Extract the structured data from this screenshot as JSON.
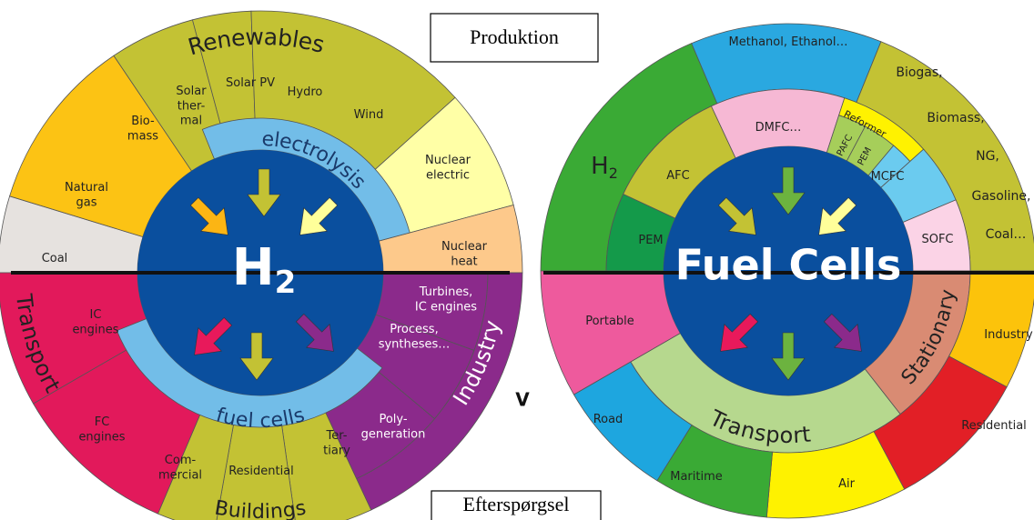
{
  "boxes": {
    "top": "Produktion",
    "bottom": "Efterspørgsel"
  },
  "stray": "V",
  "left": {
    "center": {
      "main": "H",
      "sub": "2"
    },
    "rings": {
      "electrolysis": "electrolysis",
      "fuel_cells": "fuel cells"
    },
    "groups": {
      "renewables": "Renewables",
      "industry": "Industry",
      "buildings": "Buildings",
      "transport": "Transport"
    },
    "segments": [
      [
        "Coal"
      ],
      [
        "Natural",
        "gas"
      ],
      [
        "Bio-",
        "mass"
      ],
      [
        "Solar",
        "ther-",
        "mal"
      ],
      [
        "Solar PV"
      ],
      [
        "Hydro"
      ],
      [
        "Wind"
      ],
      [
        "Nuclear",
        "electric"
      ],
      [
        "Nuclear",
        "heat"
      ],
      [
        "Turbines,",
        "IC engines"
      ],
      [
        "Process,",
        "syntheses…"
      ],
      [
        "Poly-",
        "generation"
      ],
      [
        "Ter-",
        "tiary"
      ],
      [
        "Residential"
      ],
      [
        "Com-",
        "mercial"
      ],
      [
        "FC",
        "engines"
      ],
      [
        "IC",
        "engines"
      ]
    ]
  },
  "right": {
    "center": "Fuel Cells",
    "h2": {
      "main": "H",
      "sub": "2"
    },
    "groups": {
      "transport": "Transport",
      "stationary": "Stationary"
    },
    "segments": [
      [
        "Methanol, Ethanol…"
      ],
      [
        "Biogas,"
      ],
      [
        "Biomass,"
      ],
      [
        "NG,"
      ],
      [
        "Gasoline,"
      ],
      [
        "Coal…"
      ],
      [
        "AFC"
      ],
      [
        "PEM"
      ],
      [
        "DMFC…"
      ],
      [
        "Reformer"
      ],
      [
        "PAFC"
      ],
      [
        "PEM"
      ],
      [
        "MCFC"
      ],
      [
        "SOFC"
      ],
      [
        "Portable"
      ],
      [
        "Road"
      ],
      [
        "Maritime"
      ],
      [
        "Air"
      ],
      [
        "Residential"
      ],
      [
        "Industry"
      ]
    ]
  }
}
